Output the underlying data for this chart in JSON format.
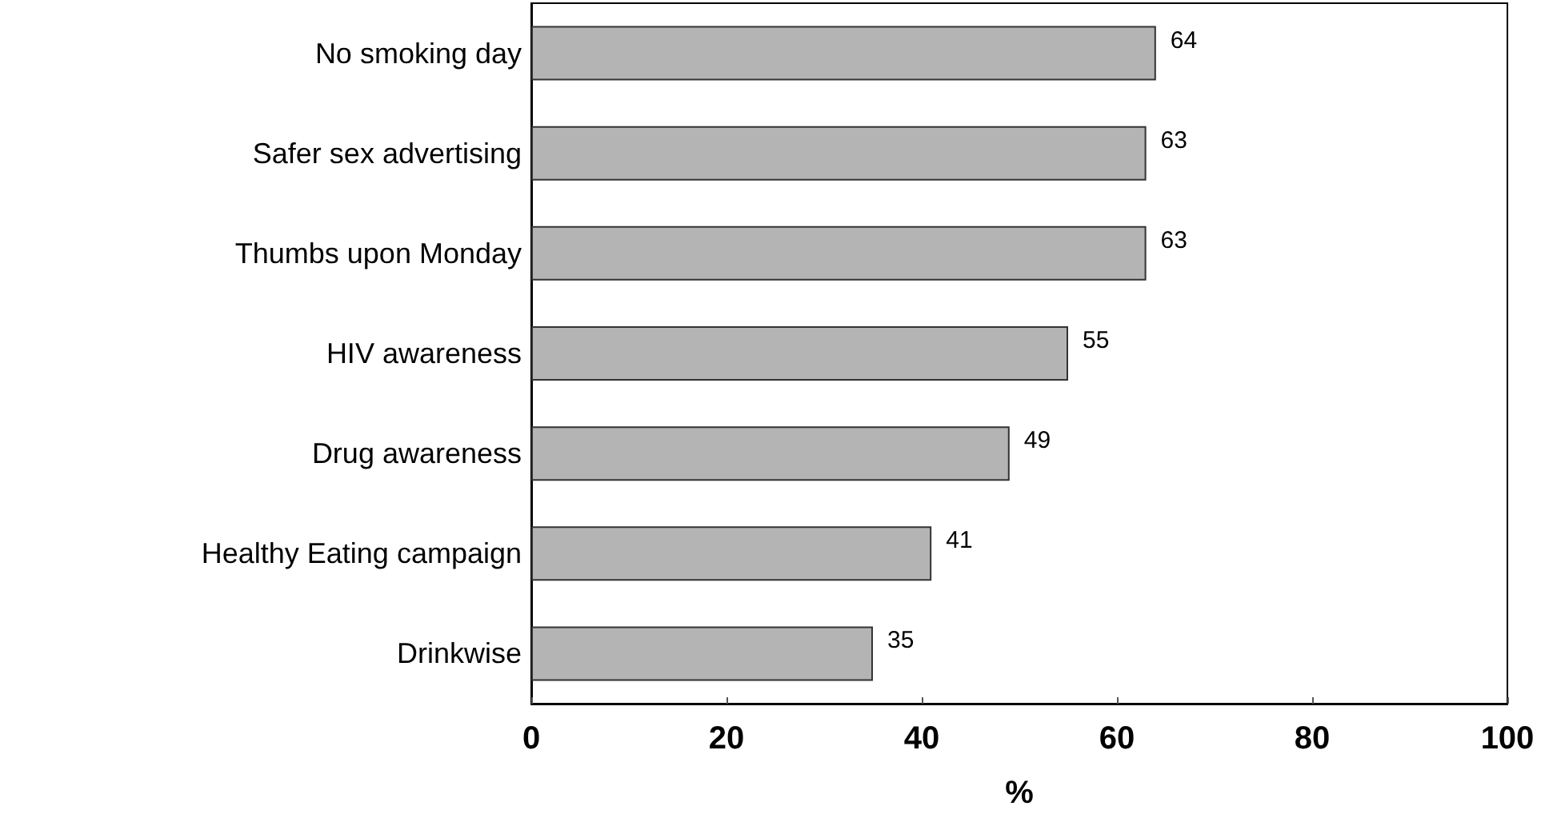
{
  "chart_data": {
    "type": "bar",
    "orientation": "horizontal",
    "xlabel": "%",
    "categories": [
      "No smoking day",
      "Safer sex advertising",
      "Thumbs upon Monday",
      "HIV awareness",
      "Drug awareness",
      "Healthy Eating campaign",
      "Drinkwise"
    ],
    "values": [
      64,
      63,
      63,
      55,
      49,
      41,
      35
    ],
    "color": "#b4b4b4",
    "xlim": [
      0,
      100
    ],
    "xticks": [
      0,
      20,
      40,
      60,
      80,
      100
    ],
    "grid": false,
    "data_labels": true
  }
}
